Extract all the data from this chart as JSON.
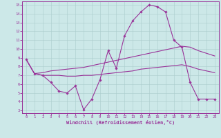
{
  "xlabel": "Windchill (Refroidissement éolien,°C)",
  "background_color": "#cce8e8",
  "grid_color": "#aacccc",
  "line_color": "#993399",
  "xlim_min": -0.5,
  "xlim_max": 23.5,
  "ylim_min": 2.7,
  "ylim_max": 15.4,
  "yticks": [
    3,
    4,
    5,
    6,
    7,
    8,
    9,
    10,
    11,
    12,
    13,
    14,
    15
  ],
  "xticks": [
    0,
    1,
    2,
    3,
    4,
    5,
    6,
    7,
    8,
    9,
    10,
    11,
    12,
    13,
    14,
    15,
    16,
    17,
    18,
    19,
    20,
    21,
    22,
    23
  ],
  "line1_x": [
    0,
    1,
    2,
    3,
    4,
    5,
    6,
    7,
    8,
    9,
    10,
    11,
    12,
    13,
    14,
    15,
    16,
    17,
    18,
    19,
    20,
    21,
    22,
    23
  ],
  "line1_y": [
    8.8,
    7.2,
    7.0,
    6.2,
    5.2,
    5.0,
    5.8,
    3.1,
    4.3,
    6.5,
    9.8,
    7.8,
    11.5,
    13.2,
    14.2,
    15.0,
    14.8,
    14.2,
    11.0,
    10.2,
    6.2,
    4.3,
    4.3,
    4.3
  ],
  "line2_x": [
    0,
    1,
    2,
    3,
    4,
    5,
    6,
    7,
    8,
    9,
    10,
    11,
    12,
    13,
    14,
    15,
    16,
    17,
    18,
    19,
    20,
    21,
    22,
    23
  ],
  "line2_y": [
    8.8,
    7.2,
    7.3,
    7.5,
    7.6,
    7.7,
    7.8,
    7.9,
    8.1,
    8.3,
    8.5,
    8.7,
    8.9,
    9.1,
    9.3,
    9.5,
    9.7,
    9.9,
    10.1,
    10.3,
    10.2,
    9.8,
    9.5,
    9.2
  ],
  "line3_x": [
    0,
    1,
    2,
    3,
    4,
    5,
    6,
    7,
    8,
    9,
    10,
    11,
    12,
    13,
    14,
    15,
    16,
    17,
    18,
    19,
    20,
    21,
    22,
    23
  ],
  "line3_y": [
    8.8,
    7.2,
    7.0,
    7.0,
    7.0,
    6.9,
    6.9,
    7.0,
    7.0,
    7.1,
    7.2,
    7.3,
    7.4,
    7.5,
    7.7,
    7.8,
    7.9,
    8.0,
    8.1,
    8.2,
    8.0,
    7.7,
    7.5,
    7.3
  ]
}
